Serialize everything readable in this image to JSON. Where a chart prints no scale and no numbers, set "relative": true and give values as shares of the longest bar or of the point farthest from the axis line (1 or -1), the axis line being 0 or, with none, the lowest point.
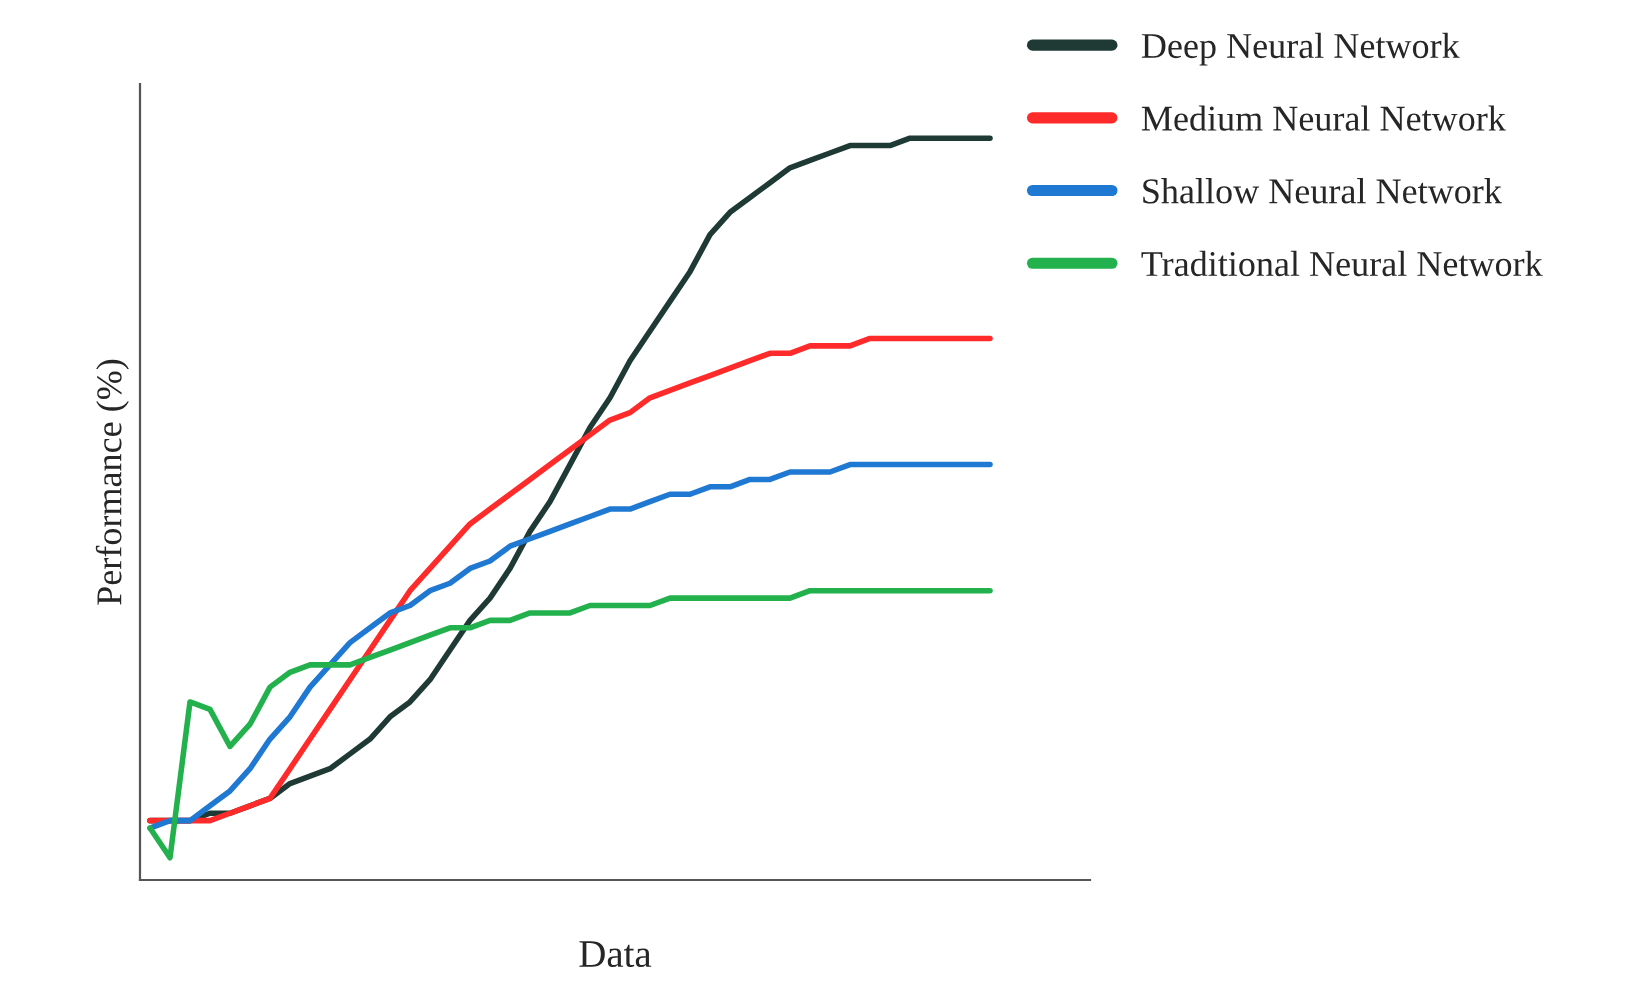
{
  "chart_data": {
    "type": "line",
    "relative": true,
    "xlabel": "Data",
    "ylabel": "Performance (%)",
    "legend": "top right",
    "grid": false,
    "marker": "none",
    "line_style": "solid",
    "categories": [
      null,
      null,
      null,
      null,
      null,
      null,
      null,
      null,
      null,
      null,
      null,
      null,
      null,
      null,
      null,
      null,
      null,
      null,
      null,
      null,
      null,
      null,
      null,
      null,
      null,
      null,
      null,
      null,
      null,
      null,
      null,
      null,
      null,
      null,
      null,
      null,
      null,
      null,
      null,
      null,
      null,
      null,
      null
    ],
    "series": [
      {
        "name": "Deep Neural Network",
        "color": "#1f3a35",
        "values": [
          0.08,
          0.08,
          0.08,
          0.09,
          0.09,
          0.1,
          0.11,
          0.13,
          0.14,
          0.15,
          0.17,
          0.19,
          0.22,
          0.24,
          0.27,
          0.31,
          0.35,
          0.38,
          0.42,
          0.47,
          0.51,
          0.56,
          0.61,
          0.65,
          0.7,
          0.74,
          0.78,
          0.82,
          0.87,
          0.9,
          0.92,
          0.94,
          0.96,
          0.97,
          0.98,
          0.99,
          0.99,
          0.99,
          1.0,
          1.0,
          1.0,
          1.0,
          1.0
        ]
      },
      {
        "name": "Medium Neural Network",
        "color": "#ff2b2b",
        "values": [
          0.08,
          0.08,
          0.08,
          0.08,
          0.09,
          0.1,
          0.11,
          0.15,
          0.19,
          0.23,
          0.27,
          0.31,
          0.35,
          0.39,
          0.42,
          0.45,
          0.48,
          0.5,
          0.52,
          0.54,
          0.56,
          0.58,
          0.6,
          0.62,
          0.63,
          0.65,
          0.66,
          0.67,
          0.68,
          0.69,
          0.7,
          0.71,
          0.71,
          0.72,
          0.72,
          0.72,
          0.73,
          0.73,
          0.73,
          0.73,
          0.73,
          0.73,
          0.73
        ]
      },
      {
        "name": "Shallow Neural Network",
        "color": "#1f78d1",
        "values": [
          0.07,
          0.08,
          0.08,
          0.1,
          0.12,
          0.15,
          0.19,
          0.22,
          0.26,
          0.29,
          0.32,
          0.34,
          0.36,
          0.37,
          0.39,
          0.4,
          0.42,
          0.43,
          0.45,
          0.46,
          0.47,
          0.48,
          0.49,
          0.5,
          0.5,
          0.51,
          0.52,
          0.52,
          0.53,
          0.53,
          0.54,
          0.54,
          0.55,
          0.55,
          0.55,
          0.56,
          0.56,
          0.56,
          0.56,
          0.56,
          0.56,
          0.56,
          0.56
        ]
      },
      {
        "name": "Traditional Neural Network",
        "color": "#22b14c",
        "values": [
          0.07,
          0.03,
          0.24,
          0.23,
          0.18,
          0.21,
          0.26,
          0.28,
          0.29,
          0.29,
          0.29,
          0.3,
          0.31,
          0.32,
          0.33,
          0.34,
          0.34,
          0.35,
          0.35,
          0.36,
          0.36,
          0.36,
          0.37,
          0.37,
          0.37,
          0.37,
          0.38,
          0.38,
          0.38,
          0.38,
          0.38,
          0.38,
          0.38,
          0.39,
          0.39,
          0.39,
          0.39,
          0.39,
          0.39,
          0.39,
          0.39,
          0.39,
          0.39
        ]
      }
    ]
  }
}
